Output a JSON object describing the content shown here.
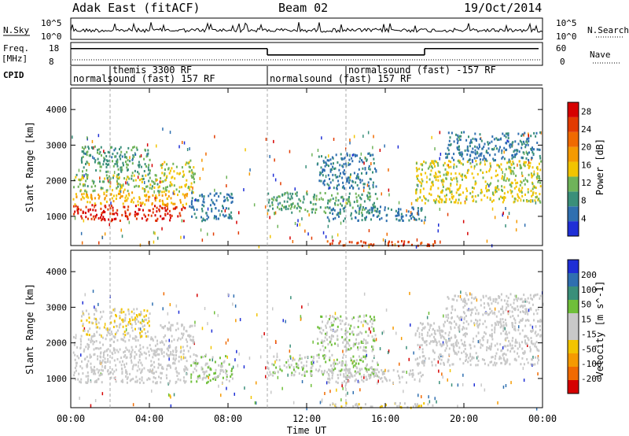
{
  "header": {
    "radar": "Adak East (fitACF)",
    "beam": "Beam 02",
    "date": "19/Oct/2014"
  },
  "strips": {
    "nsky_label": "N.Sky",
    "nsearch_label": "N.Search",
    "nsky_ticks": [
      "10^5",
      "10^0"
    ],
    "nsearch_ticks": [
      "10^5",
      "10^0"
    ],
    "freq_label": "Freq.",
    "freq_unit": "[MHz]",
    "freq_ticks": [
      "18",
      "8"
    ],
    "nave_label": "Nave",
    "nave_ticks": [
      "60",
      "0"
    ],
    "cpid_label": "CPID",
    "cpid_segments": [
      {
        "label": "normalsound (fast) 157 RF",
        "start_hour": 0,
        "end_hour": 10
      },
      {
        "label": "themis 3300 RF",
        "start_hour": 2,
        "end_hour": 2
      },
      {
        "label": "normalsound (fast) 157 RF",
        "start_hour": 10,
        "end_hour": 14
      },
      {
        "label": "normalsound (fast) -157 RF",
        "start_hour": 14,
        "end_hour": 24
      }
    ],
    "freq_steps": [
      {
        "start_hour": 0,
        "end_hour": 10,
        "mhz": 15.5
      },
      {
        "start_hour": 10,
        "end_hour": 18,
        "mhz": 12.5
      },
      {
        "start_hour": 18,
        "end_hour": 23.8,
        "mhz": 15.5
      }
    ]
  },
  "panels": {
    "power": {
      "ylabel": "Slant Range [km]",
      "cbar_label": "Power [dB]"
    },
    "velocity": {
      "ylabel": "Slant Range [km]",
      "cbar_label": "Velocity [m s^-1]"
    }
  },
  "xaxis": {
    "label": "Time UT"
  },
  "chart_data": [
    {
      "type": "heatmap",
      "name": "power",
      "x_range_hours": [
        0,
        24
      ],
      "y_range_km": [
        180,
        4600
      ],
      "xticks": [
        "00:00",
        "04:00",
        "08:00",
        "12:00",
        "16:00",
        "20:00",
        "00:00"
      ],
      "xtick_hours": [
        0,
        4,
        8,
        12,
        16,
        20,
        24
      ],
      "yticks": [
        1000,
        2000,
        3000,
        4000
      ],
      "ylabel": "Slant Range [km]",
      "colorbar": {
        "label": "Power [dB]",
        "ticks": [
          4,
          8,
          12,
          16,
          20,
          24,
          28
        ],
        "range": [
          0,
          30
        ],
        "colors": [
          "#1f2fd6",
          "#2f6fb0",
          "#3a8f7a",
          "#6fb35a",
          "#f2c400",
          "#f59a00",
          "#f06a00",
          "#e23b00",
          "#d60000"
        ]
      },
      "dashed_hours": [
        2,
        10,
        14
      ],
      "regions": [
        {
          "t0": 0.1,
          "t1": 5.8,
          "r0": 900,
          "r1": 1350,
          "value": 27
        },
        {
          "t0": 0.1,
          "t1": 5.9,
          "r0": 1350,
          "r1": 1700,
          "value": 17
        },
        {
          "t0": 0.1,
          "t1": 4.5,
          "r0": 1700,
          "r1": 2200,
          "value": 12
        },
        {
          "t0": 0.5,
          "t1": 4.0,
          "r0": 2200,
          "r1": 3000,
          "value": 9
        },
        {
          "t0": 4.5,
          "t1": 6.3,
          "r0": 1700,
          "r1": 2600,
          "value": 14
        },
        {
          "t0": 6.0,
          "t1": 8.2,
          "r0": 900,
          "r1": 1700,
          "value": 6
        },
        {
          "t0": 10.0,
          "t1": 15.6,
          "r0": 1100,
          "r1": 1700,
          "value": 10
        },
        {
          "t0": 12.5,
          "t1": 15.5,
          "r0": 1800,
          "r1": 2800,
          "value": 6
        },
        {
          "t0": 13.0,
          "t1": 18.0,
          "r0": 900,
          "r1": 1300,
          "value": 6
        },
        {
          "t0": 13.0,
          "t1": 18.5,
          "r0": 200,
          "r1": 350,
          "value": 25
        },
        {
          "t0": 17.5,
          "t1": 23.9,
          "r0": 1400,
          "r1": 2600,
          "value": 14
        },
        {
          "t0": 19.0,
          "t1": 23.9,
          "r0": 2600,
          "r1": 3400,
          "value": 6
        }
      ]
    },
    {
      "type": "heatmap",
      "name": "velocity",
      "x_range_hours": [
        0,
        24
      ],
      "y_range_km": [
        180,
        4600
      ],
      "xticks": [
        "00:00",
        "04:00",
        "08:00",
        "12:00",
        "16:00",
        "20:00",
        "00:00"
      ],
      "xtick_hours": [
        0,
        4,
        8,
        12,
        16,
        20,
        24
      ],
      "yticks": [
        1000,
        2000,
        3000,
        4000
      ],
      "ylabel": "Slant Range [km]",
      "colorbar": {
        "label": "Velocity [m s^-1]",
        "ticks": [
          200,
          100,
          50,
          15,
          -15,
          -50,
          -100,
          -200
        ],
        "range": [
          -250,
          250
        ],
        "colors": [
          "#d60000",
          "#f06a00",
          "#f59a00",
          "#f2c400",
          "#c8c8c8",
          "#c8c8c8",
          "#6fbf3a",
          "#3a8f7a",
          "#2f6fb0",
          "#1f2fd6"
        ]
      },
      "dashed_hours": [
        2,
        10,
        14
      ],
      "regions": [
        {
          "t0": 0.1,
          "t1": 5.9,
          "r0": 900,
          "r1": 1700,
          "value": 0
        },
        {
          "t0": 0.1,
          "t1": 4.5,
          "r0": 1700,
          "r1": 2200,
          "value": 0
        },
        {
          "t0": 0.5,
          "t1": 4.0,
          "r0": 2200,
          "r1": 3000,
          "value": -40
        },
        {
          "t0": 4.5,
          "t1": 6.3,
          "r0": 1700,
          "r1": 2600,
          "value": 0
        },
        {
          "t0": 6.0,
          "t1": 8.2,
          "r0": 900,
          "r1": 1700,
          "value": 40
        },
        {
          "t0": 10.0,
          "t1": 15.6,
          "r0": 1100,
          "r1": 1700,
          "value": 40
        },
        {
          "t0": 12.5,
          "t1": 15.5,
          "r0": 1800,
          "r1": 2800,
          "value": 30
        },
        {
          "t0": 13.0,
          "t1": 18.0,
          "r0": 900,
          "r1": 1300,
          "value": 0
        },
        {
          "t0": 13.0,
          "t1": 18.5,
          "r0": 200,
          "r1": 350,
          "value": -40
        },
        {
          "t0": 17.5,
          "t1": 23.9,
          "r0": 1400,
          "r1": 2600,
          "value": 0
        },
        {
          "t0": 19.0,
          "t1": 23.9,
          "r0": 2600,
          "r1": 3400,
          "value": 0
        }
      ]
    }
  ]
}
